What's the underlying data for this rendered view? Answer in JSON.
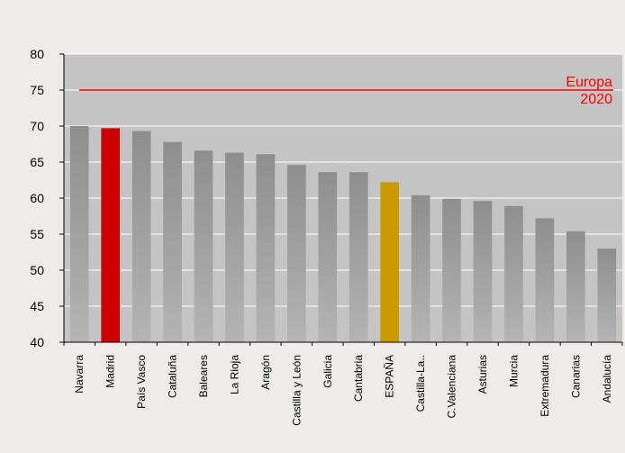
{
  "chart_data": {
    "type": "bar",
    "title": "",
    "xlabel": "",
    "ylabel": "",
    "ylim": [
      40,
      80
    ],
    "yticks": [
      40,
      45,
      50,
      55,
      60,
      65,
      70,
      75,
      80
    ],
    "grid": true,
    "categories": [
      "Navarra",
      "Madrid",
      "País Vasco",
      "Cataluña",
      "Baleares",
      "La Rioja",
      "Aragón",
      "Castilla y León",
      "Galicia",
      "Cantabria",
      "ESPAÑA",
      "Castilla-La..",
      "C.Valenciana",
      "Asturias",
      "Murcia",
      "Extremadura",
      "Canarias",
      "Andalucía"
    ],
    "values": [
      70.0,
      69.7,
      69.3,
      67.8,
      66.6,
      66.3,
      66.1,
      64.6,
      63.6,
      63.6,
      62.2,
      60.4,
      59.9,
      59.6,
      58.9,
      57.2,
      55.4,
      53.0
    ],
    "highlight_colors": {
      "Madrid": "#cc0000",
      "ESPAÑA": "#cc9900",
      "default": "#9a9a9a"
    },
    "reference_line": {
      "value": 75,
      "label_lines": [
        "Europa",
        "2020"
      ],
      "color": "#ff0000"
    },
    "plot_background": "#c4c4c4"
  }
}
